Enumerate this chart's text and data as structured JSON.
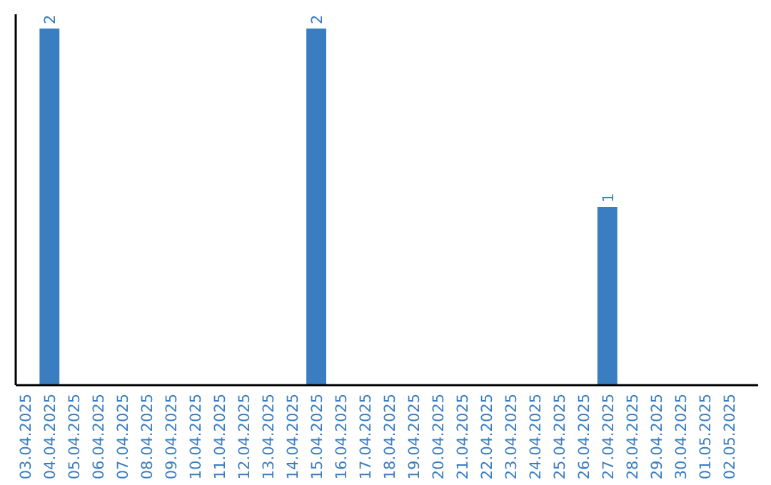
{
  "chart_data": {
    "type": "bar",
    "categories": [
      "03.04.2025",
      "04.04.2025",
      "05.04.2025",
      "06.04.2025",
      "07.04.2025",
      "08.04.2025",
      "09.04.2025",
      "10.04.2025",
      "11.04.2025",
      "12.04.2025",
      "13.04.2025",
      "14.04.2025",
      "15.04.2025",
      "16.04.2025",
      "17.04.2025",
      "18.04.2025",
      "19.04.2025",
      "20.04.2025",
      "21.04.2025",
      "22.04.2025",
      "23.04.2025",
      "24.04.2025",
      "25.04.2025",
      "26.04.2025",
      "27.04.2025",
      "28.04.2025",
      "29.04.2025",
      "30.04.2025",
      "01.05.2025",
      "02.05.2025"
    ],
    "values": [
      0,
      2,
      0,
      0,
      0,
      0,
      0,
      0,
      0,
      0,
      0,
      0,
      2,
      0,
      0,
      0,
      0,
      0,
      0,
      0,
      0,
      0,
      0,
      0,
      1,
      0,
      0,
      0,
      0,
      0
    ],
    "value_labels": [
      null,
      "2",
      null,
      null,
      null,
      null,
      null,
      null,
      null,
      null,
      null,
      null,
      "2",
      null,
      null,
      null,
      null,
      null,
      null,
      null,
      null,
      null,
      null,
      null,
      "1",
      null,
      null,
      null,
      null,
      null
    ],
    "color": "#3a7dc1",
    "tick_labels": "x"
  }
}
